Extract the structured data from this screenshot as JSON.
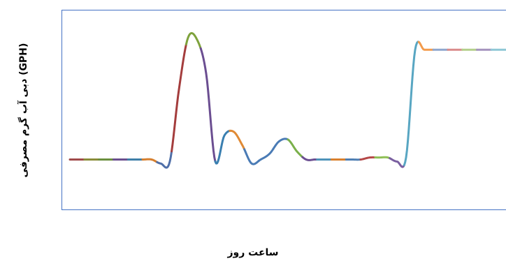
{
  "chart_data": {
    "type": "line",
    "xlabel": "ساعت روز",
    "ylabel": "دبی آب گرم مصرفی (GPH)",
    "grid": false,
    "legend": "none",
    "frame_color": "#4472C4",
    "xlim": [
      0,
      24
    ],
    "ylim": [
      0,
      100
    ],
    "x": [
      0,
      0.5,
      1,
      1.5,
      2,
      2.5,
      3,
      3.5,
      4,
      4.5,
      5,
      5.5,
      6,
      6.5,
      7,
      7.5,
      8,
      8.5,
      9,
      9.5,
      10,
      10.5,
      11,
      11.5,
      12,
      12.5,
      13,
      13.5,
      14,
      14.5,
      15,
      15.5,
      16,
      16.5,
      17,
      17.5,
      18,
      18.5,
      19,
      19.5,
      20,
      20.5,
      21,
      21.5,
      22,
      22.5,
      23,
      23.5,
      24
    ],
    "values": [
      25,
      25,
      25,
      25,
      25,
      25,
      25,
      25,
      25,
      25,
      23,
      24,
      60,
      86,
      85,
      68,
      24,
      37,
      39,
      32,
      23,
      25,
      28,
      34,
      35,
      29,
      25,
      25,
      25,
      25,
      25,
      25,
      25,
      26,
      26,
      26,
      24,
      26,
      80,
      80,
      80,
      80,
      80,
      80,
      80,
      80,
      80,
      80,
      80
    ],
    "segment_colors": [
      "#A04A4A",
      "#8A8C3A",
      "#6B8F3E",
      "#6A4F8E",
      "#3F7FA8",
      "#D67F2E",
      "#4F6FA8",
      "#A43D3D",
      "#7EA23C",
      "#6B4E91",
      "#3A7FB0",
      "#E08A35",
      "#4A7BB5",
      "#4A7BB5",
      "#4A7BB5",
      "#7AB04A",
      "#6B4E91",
      "#4F93B9",
      "#D9802E",
      "#4F7FB3",
      "#B54848",
      "#8FBF56",
      "#7A5FA0",
      "#58A6C2",
      "#F39B4C",
      "#8EA6CE",
      "#D98A8A",
      "#B3CF8A",
      "#A493BD",
      "#8EC7D6"
    ]
  }
}
